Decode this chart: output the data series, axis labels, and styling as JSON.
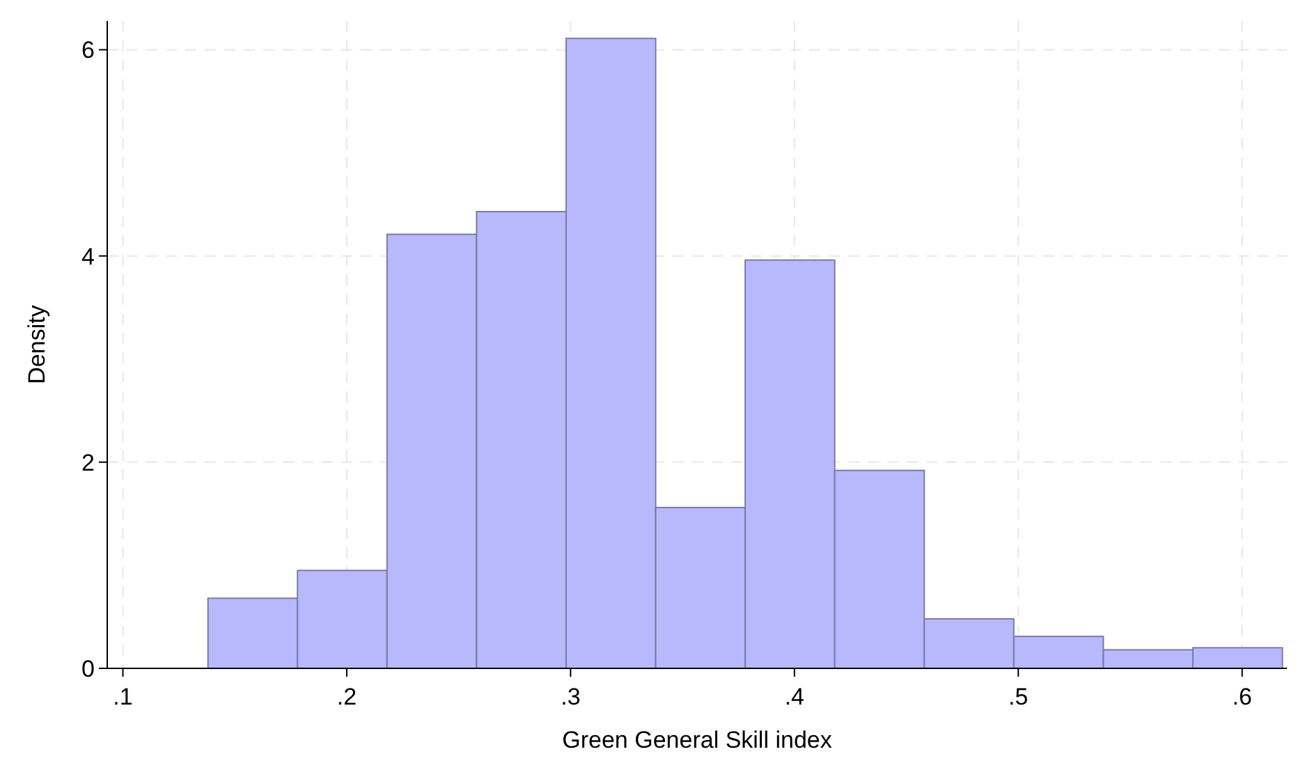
{
  "chart_data": {
    "type": "histogram",
    "xlabel": "Green General Skill index",
    "ylabel": "Density",
    "bins": [
      0.138,
      0.178,
      0.218,
      0.258,
      0.298,
      0.338,
      0.378,
      0.418,
      0.458,
      0.498,
      0.538,
      0.578,
      0.618
    ],
    "values": [
      0.68,
      0.95,
      4.21,
      4.43,
      6.11,
      1.56,
      3.96,
      1.92,
      0.48,
      0.31,
      0.18,
      0.2
    ],
    "color": "#b8b8fc",
    "xlim": [
      0.093,
      0.62
    ],
    "xticks": [
      {
        "value": 0.1,
        "label": ".1"
      },
      {
        "value": 0.2,
        "label": ".2"
      },
      {
        "value": 0.3,
        "label": ".3"
      },
      {
        "value": 0.4,
        "label": ".4"
      },
      {
        "value": 0.5,
        "label": ".5"
      },
      {
        "value": 0.6,
        "label": ".6"
      }
    ],
    "ylim": [
      0,
      6.28
    ],
    "yticks": [
      0,
      2,
      4,
      6
    ],
    "grid": true
  }
}
